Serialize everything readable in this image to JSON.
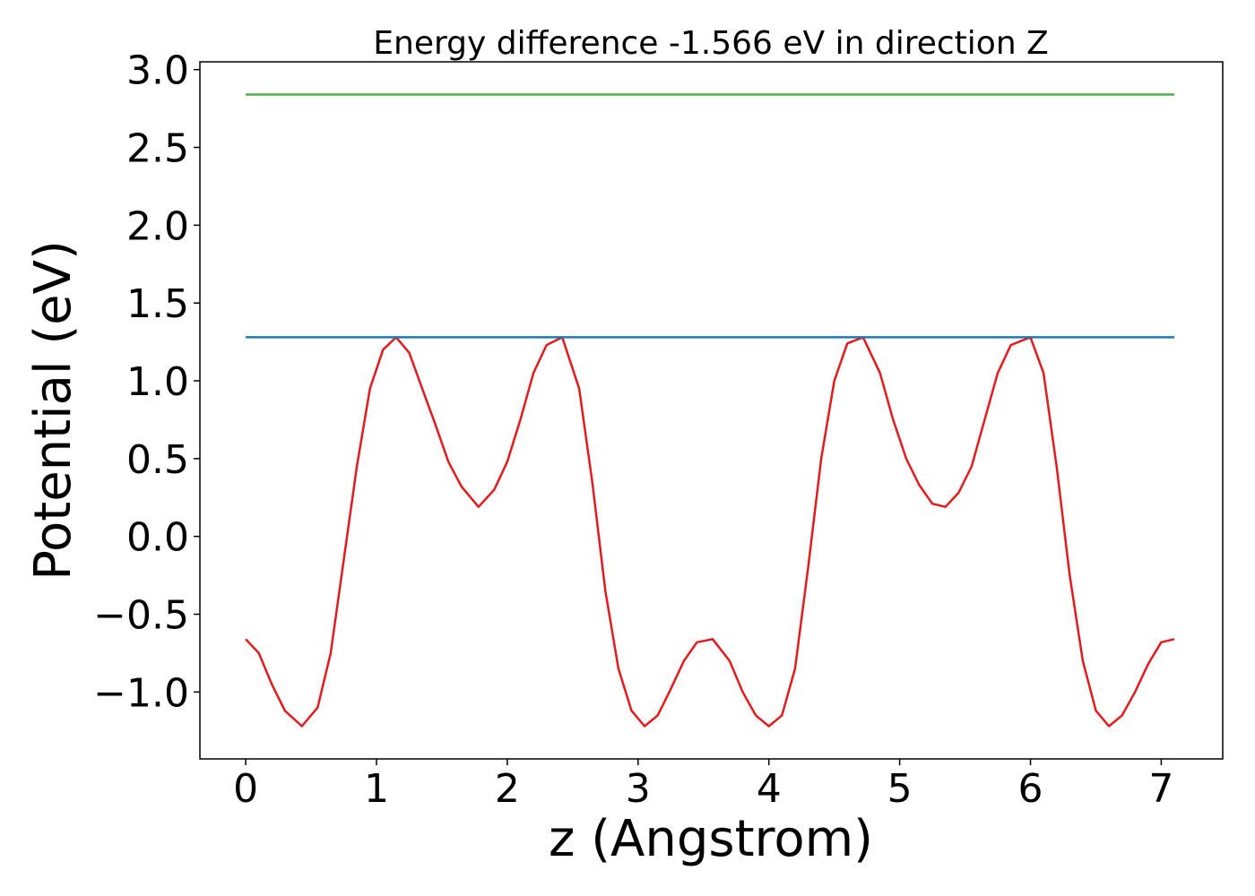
{
  "chart_data": {
    "type": "line",
    "title": "Energy difference -1.566 eV in direction Z",
    "xlabel": "z (Angstrom)",
    "ylabel": "Potential (eV)",
    "xlim": [
      -0.35,
      7.47
    ],
    "ylim": [
      -1.43,
      3.05
    ],
    "xticks": [
      0,
      1,
      2,
      3,
      4,
      5,
      6,
      7
    ],
    "xtick_labels": [
      "0",
      "1",
      "2",
      "3",
      "4",
      "5",
      "6",
      "7"
    ],
    "yticks": [
      3.0,
      2.5,
      2.0,
      1.5,
      1.0,
      0.5,
      0.0,
      -0.5,
      -1.0
    ],
    "ytick_labels": [
      "3.0",
      "2.5",
      "2.0",
      "1.5",
      "1.0",
      "0.5",
      "0.0",
      "−0.5",
      "−1.0"
    ],
    "grid": false,
    "series": [
      {
        "color": "#e41a1c",
        "x": [
          0,
          0.1,
          0.2,
          0.3,
          0.43,
          0.55,
          0.65,
          0.75,
          0.85,
          0.95,
          1.05,
          1.15,
          1.25,
          1.35,
          1.45,
          1.55,
          1.65,
          1.78,
          1.9,
          2.0,
          2.1,
          2.2,
          2.3,
          2.42,
          2.55,
          2.65,
          2.75,
          2.85,
          2.95,
          3.05,
          3.15,
          3.25,
          3.35,
          3.45,
          3.57,
          3.7,
          3.8,
          3.9,
          4.0,
          4.1,
          4.2,
          4.3,
          4.4,
          4.5,
          4.6,
          4.72,
          4.85,
          4.95,
          5.05,
          5.15,
          5.25,
          5.35,
          5.45,
          5.55,
          5.65,
          5.75,
          5.85,
          6.0,
          6.1,
          6.2,
          6.3,
          6.4,
          6.5,
          6.6,
          6.7,
          6.8,
          6.9,
          7.0,
          7.1
        ],
        "y": [
          -0.66,
          -0.75,
          -0.95,
          -1.12,
          -1.22,
          -1.1,
          -0.75,
          -0.15,
          0.45,
          0.95,
          1.2,
          1.28,
          1.18,
          0.95,
          0.72,
          0.48,
          0.32,
          0.19,
          0.3,
          0.48,
          0.75,
          1.05,
          1.23,
          1.28,
          0.95,
          0.35,
          -0.35,
          -0.85,
          -1.12,
          -1.22,
          -1.15,
          -0.98,
          -0.8,
          -0.68,
          -0.66,
          -0.8,
          -1.0,
          -1.15,
          -1.22,
          -1.15,
          -0.85,
          -0.2,
          0.5,
          1.0,
          1.24,
          1.28,
          1.05,
          0.75,
          0.5,
          0.33,
          0.21,
          0.19,
          0.28,
          0.45,
          0.75,
          1.05,
          1.23,
          1.28,
          1.05,
          0.45,
          -0.25,
          -0.8,
          -1.12,
          -1.22,
          -1.15,
          -1.0,
          -0.82,
          -0.68,
          -0.66
        ]
      },
      {
        "color": "#1f77b4",
        "x": [
          0,
          7.1
        ],
        "y": [
          1.28,
          1.28
        ]
      },
      {
        "color": "#4daf4a",
        "x": [
          0,
          7.1
        ],
        "y": [
          2.84,
          2.84
        ]
      }
    ]
  }
}
